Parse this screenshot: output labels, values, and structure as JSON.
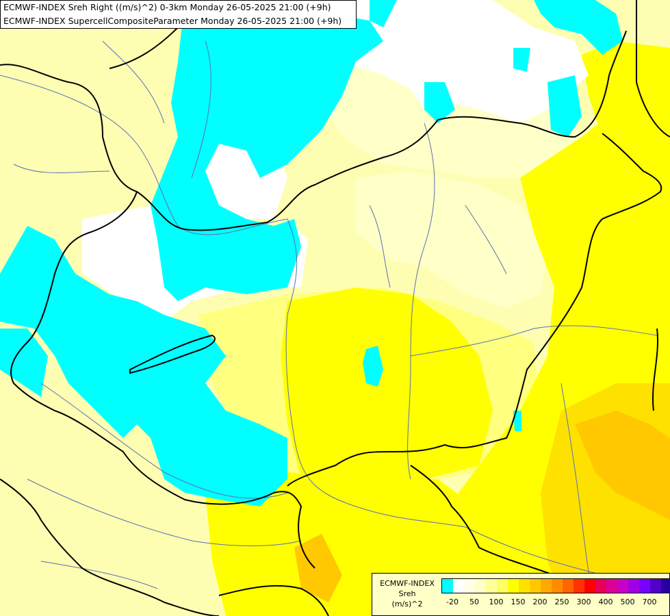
{
  "header": {
    "line1": "ECMWF-INDEX Sreh Right ((m/s)^2) 0-3km Monday 26-05-2025 21:00 (+9h)",
    "line2": "ECMWF-INDEX SupercellCompositeParameter Monday 26-05-2025 21:00 (+9h)"
  },
  "legend": {
    "title": [
      "ECMWF-INDEX",
      "Sreh",
      "(m/s)^2"
    ],
    "colors": [
      "#00ffff",
      "#ffffff",
      "#ffffe6",
      "#ffffc8",
      "#ffff96",
      "#ffff64",
      "#ffff00",
      "#ffe100",
      "#ffc800",
      "#ffaa00",
      "#ff8c00",
      "#ff6400",
      "#ff3200",
      "#ff0000",
      "#e6005a",
      "#dc0096",
      "#c800c8",
      "#a000e6",
      "#7800ff",
      "#5000c8",
      "#2800a0",
      "#000078"
    ],
    "labels": [
      "-20",
      "50",
      "100",
      "150",
      "200",
      "250",
      "300",
      "400",
      "500",
      "700"
    ]
  },
  "map": {
    "colors": {
      "pale_yellow": "#fefeb2",
      "light_yellow": "#ffffc8",
      "mid_yellow": "#ffff80",
      "yellow": "#ffff00",
      "gold": "#ffe100",
      "amber": "#ffc800",
      "cyan": "#00ffff",
      "white": "#ffffff",
      "border": "#000000",
      "river": "#5a6fb4"
    }
  }
}
